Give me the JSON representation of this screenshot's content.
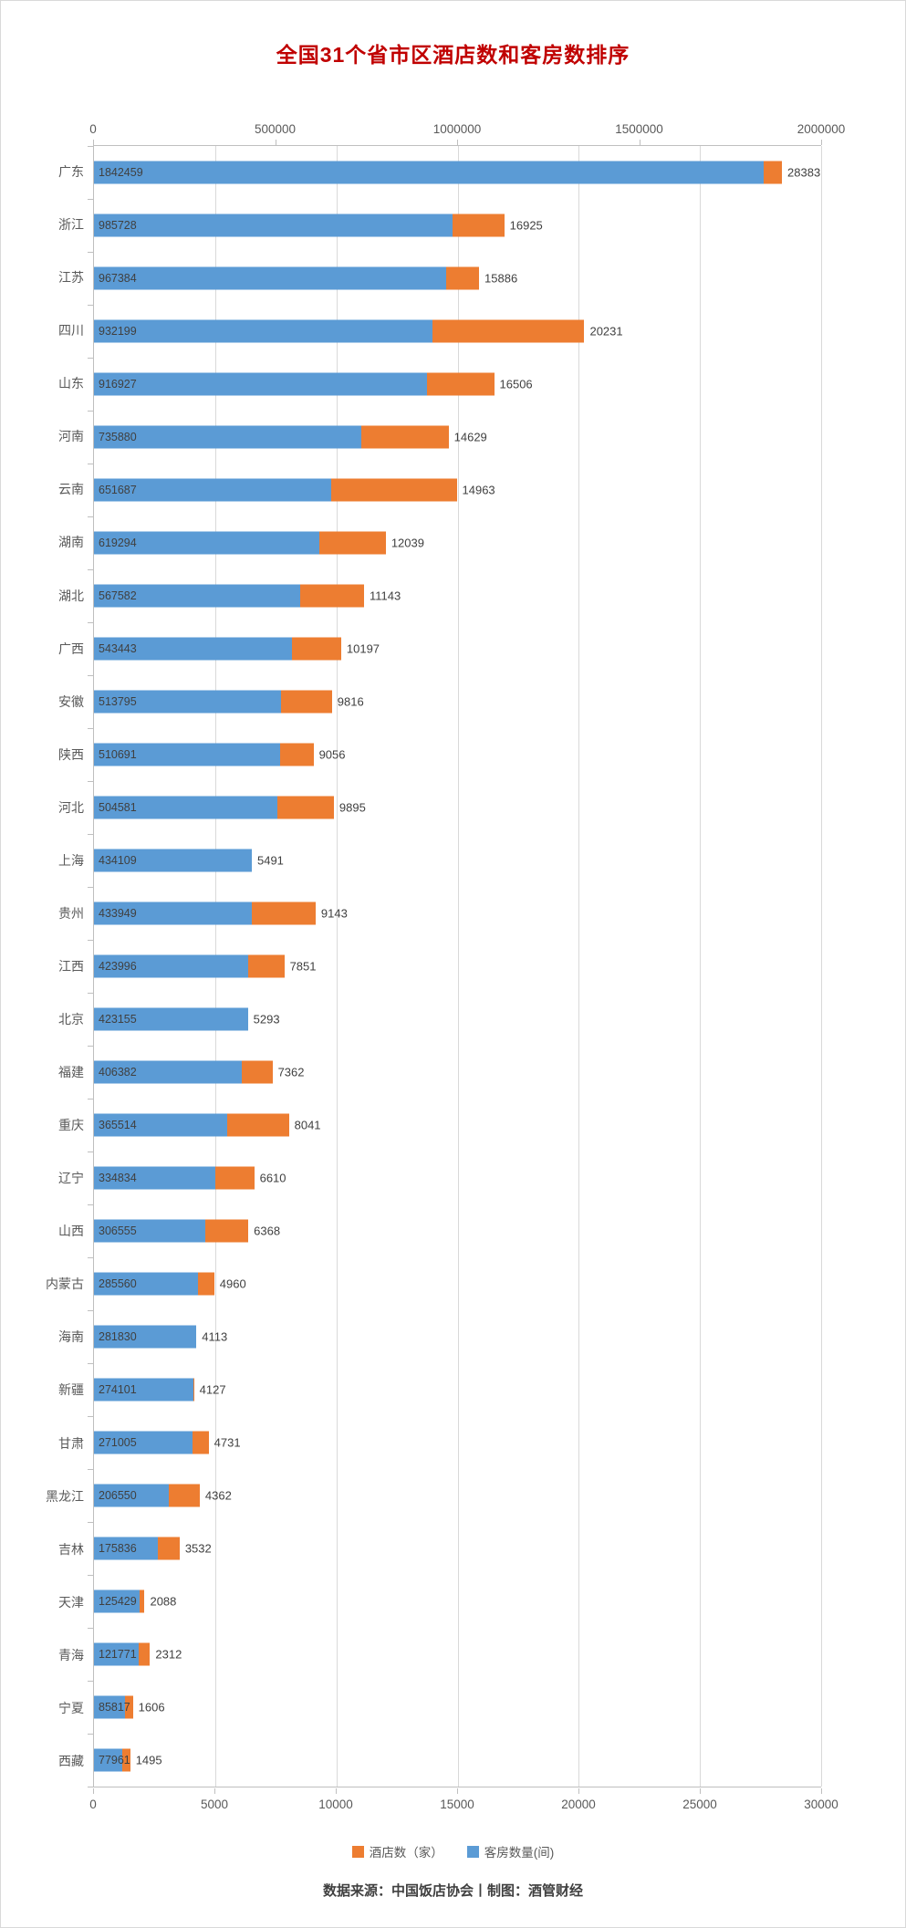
{
  "title": "全国31个省市区酒店数和客房数排序",
  "footer": "数据来源：中国饭店协会丨制图：酒管财经",
  "legend": [
    {
      "label": "酒店数（家）",
      "color": "#ED7D31"
    },
    {
      "label": "客房数量(间)",
      "color": "#5B9BD5"
    }
  ],
  "colors": {
    "room_bar": "#5B9BD5",
    "hotel_bar": "#ED7D31",
    "title_text": "#C00000",
    "axis_text": "#595959",
    "gridline": "#D9D9D9",
    "axis_line": "#BFBFBF"
  },
  "chart_data": {
    "type": "bar",
    "orientation": "horizontal",
    "title": "全国31个省市区酒店数和客房数排序",
    "grid": "vertical gridlines at bottom-axis ticks",
    "legend_position": "bottom",
    "categories": [
      "广东",
      "浙江",
      "江苏",
      "四川",
      "山东",
      "河南",
      "云南",
      "湖南",
      "湖北",
      "广西",
      "安徽",
      "陕西",
      "河北",
      "上海",
      "贵州",
      "江西",
      "北京",
      "福建",
      "重庆",
      "辽宁",
      "山西",
      "内蒙古",
      "海南",
      "新疆",
      "甘肃",
      "黑龙江",
      "吉林",
      "天津",
      "青海",
      "宁夏",
      "西藏"
    ],
    "series": [
      {
        "name": "客房数量(间)",
        "axis": "top",
        "color": "#5B9BD5",
        "values": [
          1842459,
          985728,
          967384,
          932199,
          916927,
          735880,
          651687,
          619294,
          567582,
          543443,
          513795,
          510691,
          504581,
          434109,
          433949,
          423996,
          423155,
          406382,
          365514,
          334834,
          306555,
          285560,
          281830,
          274101,
          271005,
          206550,
          175836,
          125429,
          121771,
          85817,
          77961
        ]
      },
      {
        "name": "酒店数（家）",
        "axis": "bottom",
        "color": "#ED7D31",
        "values": [
          28383,
          16925,
          15886,
          20231,
          16506,
          14629,
          14963,
          12039,
          11143,
          10197,
          9816,
          9056,
          9895,
          5491,
          9143,
          7851,
          5293,
          7362,
          8041,
          6610,
          6368,
          4960,
          4113,
          4127,
          4731,
          4362,
          3532,
          2088,
          2312,
          1606,
          1495
        ]
      }
    ],
    "top_axis": {
      "min": 0,
      "max": 2000000,
      "ticks": [
        0,
        500000,
        1000000,
        1500000,
        2000000
      ]
    },
    "bottom_axis": {
      "min": 0,
      "max": 30000,
      "ticks": [
        0,
        5000,
        10000,
        15000,
        20000,
        25000,
        30000
      ]
    }
  }
}
